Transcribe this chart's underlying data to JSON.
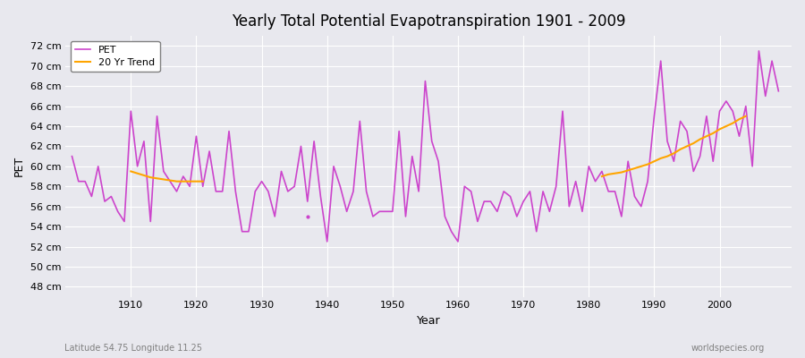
{
  "title": "Yearly Total Potential Evapotranspiration 1901 - 2009",
  "xlabel": "Year",
  "ylabel": "PET",
  "subtitle": "Latitude 54.75 Longitude 11.25",
  "watermark": "worldspecies.org",
  "pet_color": "#cc44cc",
  "trend_color": "#ffa500",
  "bg_color": "#e8e8ee",
  "grid_color": "#ffffff",
  "ylim": [
    47,
    73
  ],
  "yticks": [
    48,
    50,
    52,
    54,
    56,
    58,
    60,
    62,
    64,
    66,
    68,
    70,
    72
  ],
  "years": [
    1901,
    1902,
    1903,
    1904,
    1905,
    1906,
    1907,
    1908,
    1909,
    1910,
    1911,
    1912,
    1913,
    1914,
    1915,
    1916,
    1917,
    1918,
    1919,
    1920,
    1921,
    1922,
    1923,
    1924,
    1925,
    1926,
    1927,
    1928,
    1929,
    1930,
    1931,
    1932,
    1933,
    1934,
    1935,
    1936,
    1937,
    1938,
    1939,
    1940,
    1941,
    1942,
    1943,
    1944,
    1945,
    1946,
    1947,
    1948,
    1949,
    1950,
    1951,
    1952,
    1953,
    1954,
    1955,
    1956,
    1957,
    1958,
    1959,
    1960,
    1961,
    1962,
    1963,
    1964,
    1965,
    1966,
    1967,
    1968,
    1969,
    1970,
    1971,
    1972,
    1973,
    1974,
    1975,
    1976,
    1977,
    1978,
    1979,
    1980,
    1981,
    1982,
    1983,
    1984,
    1985,
    1986,
    1987,
    1988,
    1989,
    1990,
    1991,
    1992,
    1993,
    1994,
    1995,
    1996,
    1997,
    1998,
    1999,
    2000,
    2001,
    2002,
    2003,
    2004,
    2005,
    2006,
    2007,
    2008,
    2009
  ],
  "pet_values": [
    61.0,
    58.5,
    58.5,
    57.0,
    60.0,
    56.5,
    57.0,
    55.5,
    54.5,
    65.5,
    60.0,
    62.5,
    54.5,
    65.0,
    59.5,
    58.5,
    57.5,
    59.0,
    58.0,
    63.0,
    58.0,
    61.5,
    57.5,
    57.5,
    63.5,
    57.5,
    53.5,
    53.5,
    57.5,
    58.5,
    57.5,
    55.0,
    59.5,
    57.5,
    58.0,
    62.0,
    56.5,
    62.5,
    57.0,
    52.5,
    60.0,
    58.0,
    55.5,
    57.5,
    64.5,
    57.5,
    55.0,
    55.5,
    55.5,
    55.5,
    63.5,
    55.0,
    61.0,
    57.5,
    68.5,
    62.5,
    60.5,
    55.0,
    53.5,
    52.5,
    58.0,
    57.5,
    54.5,
    56.5,
    56.5,
    55.5,
    57.5,
    57.0,
    55.0,
    56.5,
    57.5,
    53.5,
    57.5,
    55.5,
    58.0,
    65.5,
    56.0,
    58.5,
    55.5,
    60.0,
    58.5,
    59.5,
    57.5,
    57.5,
    55.0,
    60.5,
    57.0,
    56.0,
    58.5,
    65.0,
    70.5,
    62.5,
    60.5,
    64.5,
    63.5,
    59.5,
    61.0,
    65.0,
    60.5,
    65.5,
    66.5,
    65.5,
    63.0,
    66.0,
    60.0,
    71.5,
    67.0,
    70.5,
    67.5
  ],
  "trend_years": [
    1910,
    1911,
    1912,
    1913,
    1914,
    1915,
    1916,
    1917,
    1918,
    1919,
    1920,
    1921,
    1982,
    1983,
    1984,
    1985,
    1986,
    1987,
    1988,
    1989,
    1990,
    1991,
    1992,
    1993,
    1994,
    1995,
    1996,
    1997,
    1998,
    1999,
    2000,
    2001,
    2002,
    2003,
    2004
  ],
  "trend_values": [
    59.5,
    59.3,
    59.1,
    58.9,
    58.8,
    58.7,
    58.6,
    58.5,
    58.5,
    58.5,
    58.5,
    58.5,
    59.0,
    59.2,
    59.3,
    59.4,
    59.6,
    59.8,
    60.0,
    60.2,
    60.5,
    60.8,
    61.0,
    61.3,
    61.7,
    62.0,
    62.3,
    62.7,
    63.0,
    63.3,
    63.7,
    64.0,
    64.3,
    64.7,
    65.0
  ]
}
